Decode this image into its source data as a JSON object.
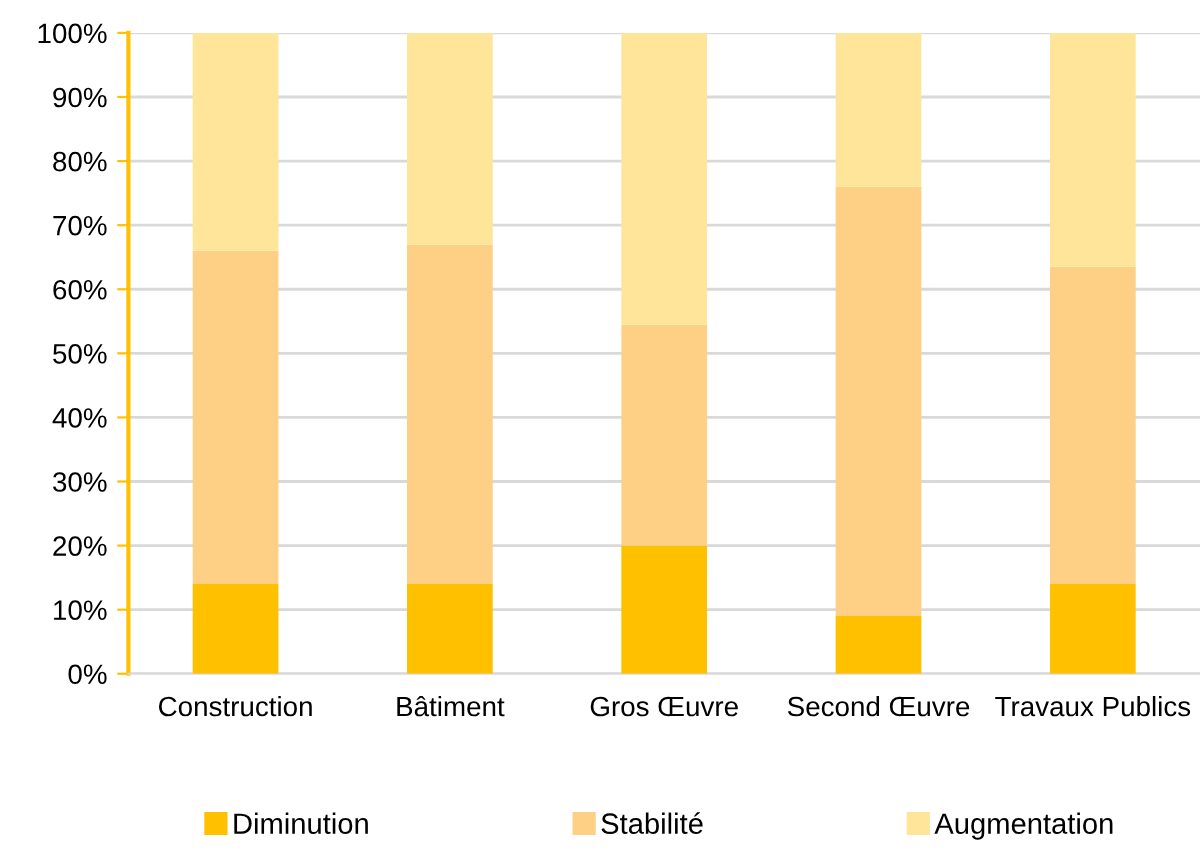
{
  "chart_data": {
    "type": "bar",
    "stacked": true,
    "categories": [
      "Construction",
      "Bâtiment",
      "Gros Œuvre",
      "Second Œuvre",
      "Travaux Publics"
    ],
    "series": [
      {
        "name": "Diminution",
        "color": "#ffc000",
        "values": [
          14,
          14,
          20,
          9,
          14
        ]
      },
      {
        "name": "Stabilité",
        "color": "#fdd086",
        "values": [
          52,
          53,
          34.5,
          67,
          49.5
        ]
      },
      {
        "name": "Augmentation",
        "color": "#fee599",
        "values": [
          34,
          33,
          45.5,
          24,
          36.5
        ]
      }
    ],
    "ylim": [
      0,
      100
    ],
    "yticks": [
      {
        "value": 0,
        "label": "0%"
      },
      {
        "value": 10,
        "label": "10%"
      },
      {
        "value": 20,
        "label": "20%"
      },
      {
        "value": 30,
        "label": "30%"
      },
      {
        "value": 40,
        "label": "40%"
      },
      {
        "value": 50,
        "label": "50%"
      },
      {
        "value": 60,
        "label": "60%"
      },
      {
        "value": 70,
        "label": "70%"
      },
      {
        "value": 80,
        "label": "80%"
      },
      {
        "value": 90,
        "label": "90%"
      },
      {
        "value": 100,
        "label": "100%"
      }
    ],
    "grid": "y",
    "legend": "bottom"
  }
}
